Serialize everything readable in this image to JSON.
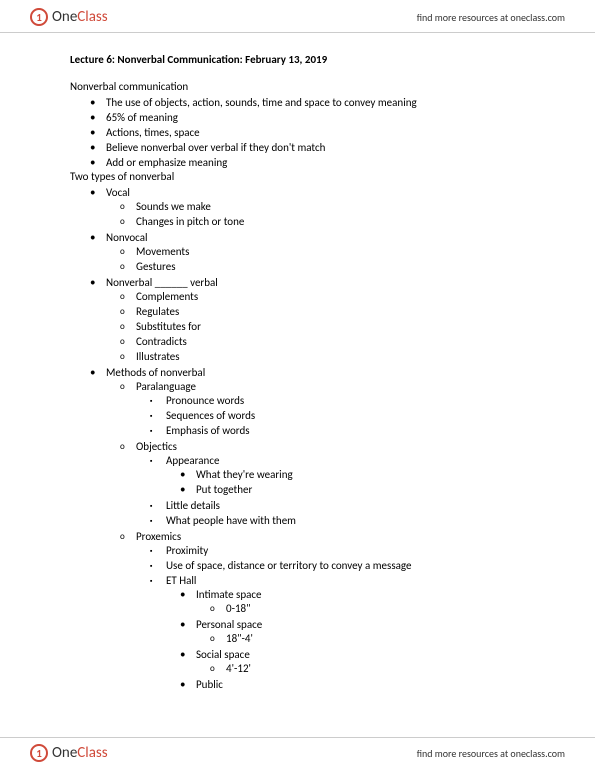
{
  "brand": {
    "one": "One",
    "class": "Class",
    "link": "find more resources at oneclass.com"
  },
  "title": "Lecture 6: Nonverbal Communication: February 13, 2019",
  "s1": {
    "heading": "Nonverbal communication",
    "items": [
      "The use of objects, action, sounds, time and space to convey meaning",
      "65% of meaning",
      "Actions, times, space",
      "Believe nonverbal over verbal if they don't match",
      "Add or emphasize meaning"
    ]
  },
  "s2": {
    "heading": "Two types of nonverbal",
    "vocal": {
      "label": "Vocal",
      "items": [
        "Sounds we make",
        "Changes in pitch or tone"
      ]
    },
    "nonvocal": {
      "label": "Nonvocal",
      "items": [
        "Movements",
        "Gestures"
      ]
    },
    "rel": {
      "label": "Nonverbal ______ verbal",
      "items": [
        "Complements",
        "Regulates",
        "Substitutes for",
        "Contradicts",
        "Illustrates"
      ]
    },
    "methods": {
      "label": "Methods of nonverbal",
      "para": {
        "label": "Paralanguage",
        "items": [
          "Pronounce words",
          "Sequences of words",
          "Emphasis of words"
        ]
      },
      "obj": {
        "label": "Objectics",
        "appearance": {
          "label": "Appearance",
          "items": [
            "What they're wearing",
            "Put together"
          ]
        },
        "rest": [
          "Little details",
          "What people have with them"
        ]
      },
      "prox": {
        "label": "Proxemics",
        "items": [
          "Proximity",
          "Use of space, distance or territory to convey a message"
        ],
        "hall": {
          "label": "ET Hall",
          "zones": [
            {
              "name": "Intimate space",
              "range": "0-18\""
            },
            {
              "name": "Personal space",
              "range": "18\"-4'"
            },
            {
              "name": "Social space",
              "range": "4'-12'"
            },
            {
              "name": "Public",
              "range": ""
            }
          ]
        }
      }
    }
  }
}
